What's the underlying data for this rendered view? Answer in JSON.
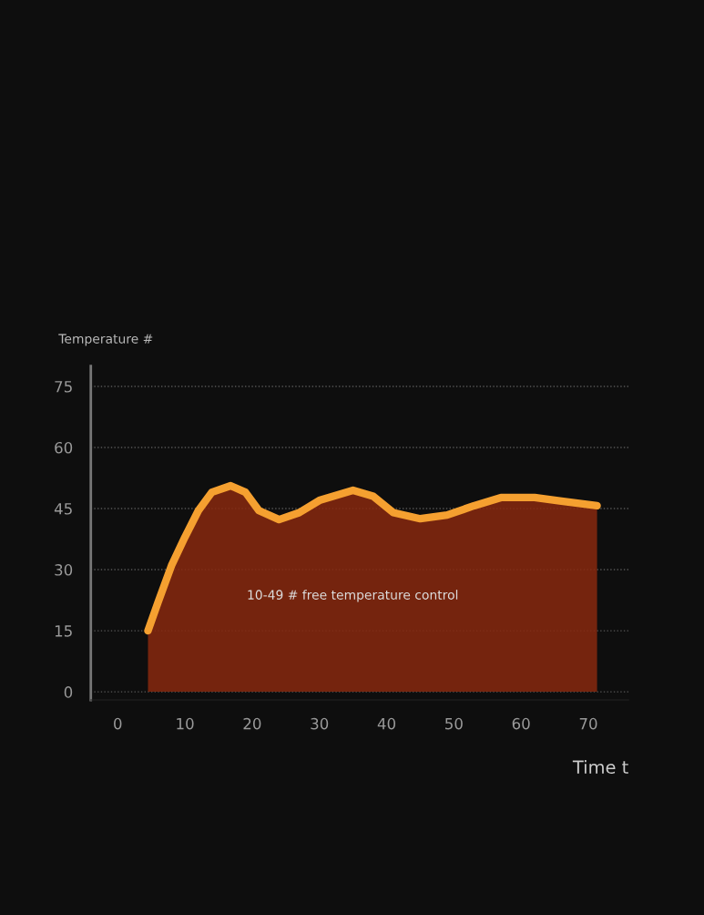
{
  "chart_data": {
    "type": "area",
    "ylabel": "Temperature #",
    "xlabel": "Time t",
    "annotations": [
      "10-49 # free temperature control"
    ],
    "series": [
      {
        "color": "#f5a030",
        "x": [
          4.5,
          6,
          8,
          10,
          12,
          14,
          16.8,
          19,
          21,
          24,
          27,
          30,
          35,
          38,
          41,
          45,
          49,
          53,
          57,
          62,
          66,
          71.3
        ],
        "values": [
          15,
          22,
          31,
          38,
          44.5,
          49,
          50.6,
          49,
          44.5,
          42.3,
          44,
          47,
          49.5,
          48,
          44,
          42.5,
          43.4,
          45.7,
          47.7,
          47.7,
          46.8,
          45.7
        ]
      }
    ],
    "xlim": [
      -4,
      76
    ],
    "ylim": [
      -2,
      80
    ],
    "xticks": [
      0,
      10,
      20,
      30,
      40,
      50,
      60,
      70
    ],
    "yticks": [
      0,
      15,
      30,
      45,
      60,
      75
    ],
    "grid": "y",
    "line_style": "solid",
    "legend": false
  }
}
